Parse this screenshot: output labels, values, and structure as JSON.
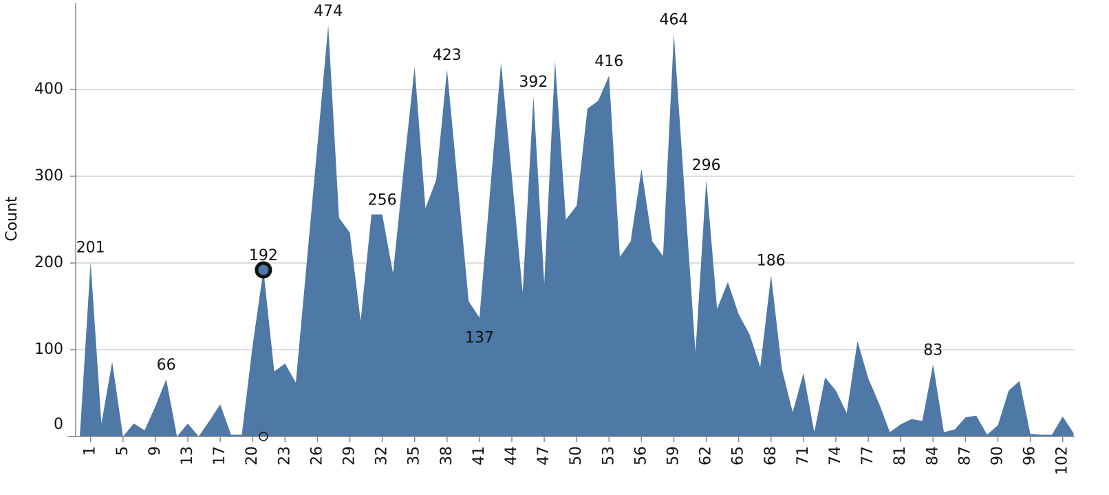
{
  "chart_data": {
    "type": "area",
    "y_label": "Count",
    "categories": [
      null,
      "1",
      null,
      null,
      "5",
      null,
      null,
      "9",
      null,
      null,
      "13",
      null,
      null,
      "17",
      null,
      null,
      "20",
      null,
      null,
      "23",
      null,
      null,
      "26",
      null,
      null,
      "29",
      null,
      null,
      "32",
      null,
      null,
      "35",
      null,
      null,
      "38",
      null,
      null,
      "41",
      null,
      null,
      "44",
      null,
      null,
      "47",
      null,
      null,
      "50",
      null,
      null,
      "53",
      null,
      null,
      "56",
      null,
      null,
      "59",
      null,
      null,
      "62",
      null,
      null,
      "65",
      null,
      null,
      "68",
      null,
      null,
      "71",
      null,
      null,
      "74",
      null,
      null,
      "77",
      null,
      null,
      "81",
      null,
      null,
      "84",
      null,
      null,
      "87",
      null,
      null,
      "90",
      null,
      null,
      "96",
      null,
      null,
      "102",
      null
    ],
    "values": [
      0,
      201,
      15,
      86,
      0,
      15,
      7,
      35,
      66,
      0,
      15,
      0,
      18,
      37,
      2,
      2,
      105,
      192,
      75,
      84,
      62,
      199,
      336,
      474,
      252,
      235,
      133,
      256,
      256,
      188,
      310,
      426,
      263,
      296,
      423,
      290,
      156,
      137,
      285,
      431,
      300,
      166,
      392,
      176,
      433,
      250,
      266,
      378,
      387,
      416,
      207,
      225,
      308,
      225,
      208,
      464,
      280,
      97,
      296,
      147,
      178,
      141,
      118,
      80,
      186,
      78,
      28,
      73,
      5,
      68,
      53,
      27,
      110,
      67,
      38,
      5,
      14,
      20,
      18,
      83,
      5,
      8,
      22,
      24,
      2,
      13,
      53,
      64,
      3,
      2,
      2,
      23,
      4
    ],
    "value_labels": [
      null,
      "201",
      null,
      null,
      null,
      null,
      null,
      null,
      "66",
      null,
      null,
      null,
      null,
      null,
      null,
      null,
      null,
      "192",
      null,
      null,
      null,
      null,
      null,
      "474",
      null,
      null,
      null,
      null,
      "256",
      null,
      null,
      null,
      null,
      null,
      "423",
      null,
      null,
      "137",
      null,
      null,
      null,
      null,
      "392",
      null,
      null,
      null,
      null,
      null,
      null,
      "416",
      null,
      null,
      null,
      null,
      null,
      "464",
      null,
      null,
      "296",
      null,
      null,
      null,
      null,
      null,
      "186",
      null,
      null,
      null,
      null,
      null,
      null,
      null,
      null,
      null,
      null,
      null,
      null,
      null,
      null,
      "83",
      null,
      null,
      null,
      null,
      null,
      null,
      null,
      null,
      null,
      null,
      null,
      null,
      null
    ],
    "selected": 17,
    "color": "#4e78a6",
    "ylim": [
      0,
      500
    ],
    "yticks": [
      0,
      100,
      200,
      300,
      400
    ],
    "grid": true
  }
}
